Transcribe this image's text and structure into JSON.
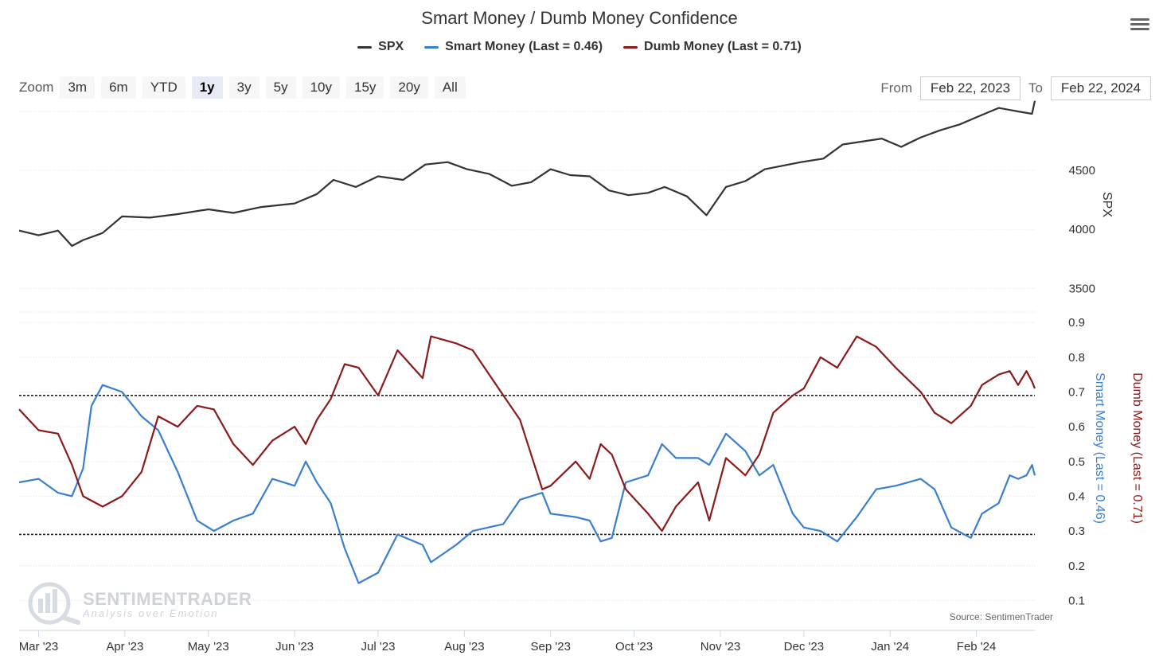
{
  "title": "Smart Money / Dumb Money Confidence",
  "legend": [
    {
      "label": "SPX",
      "color": "#333333"
    },
    {
      "label": "Smart Money (Last = 0.46)",
      "color": "#3a7fcf"
    },
    {
      "label": "Dumb Money (Last = 0.71)",
      "color": "#8b1a1a"
    }
  ],
  "zoom": {
    "label": "Zoom",
    "buttons": [
      "3m",
      "6m",
      "YTD",
      "1y",
      "3y",
      "5y",
      "10y",
      "15y",
      "20y",
      "All"
    ],
    "active": "1y"
  },
  "range": {
    "from_label": "From",
    "from_value": "Feb 22, 2023",
    "to_label": "To",
    "to_value": "Feb 22, 2024"
  },
  "source": "Source: SentimenTrader",
  "watermark": {
    "name": "SENTIMENTRADER",
    "tagline": "Analysis over Emotion"
  },
  "chart_data": {
    "type": "line",
    "x_range": [
      "2023-02-22",
      "2024-02-22"
    ],
    "x_tick_labels": [
      "Mar '23",
      "Apr '23",
      "May '23",
      "Jun '23",
      "Jul '23",
      "Aug '23",
      "Sep '23",
      "Oct '23",
      "Nov '23",
      "Dec '23",
      "Jan '24",
      "Feb '24"
    ],
    "panels": [
      {
        "axis_title": "SPX",
        "y_range": [
          3300,
          5000
        ],
        "y_ticks": [
          3500,
          4000,
          4500
        ],
        "series": [
          {
            "name": "SPX",
            "color": "#333333",
            "points": [
              [
                "2023-02-22",
                3990
              ],
              [
                "2023-03-01",
                3950
              ],
              [
                "2023-03-08",
                3990
              ],
              [
                "2023-03-13",
                3860
              ],
              [
                "2023-03-17",
                3910
              ],
              [
                "2023-03-24",
                3970
              ],
              [
                "2023-03-31",
                4110
              ],
              [
                "2023-04-10",
                4100
              ],
              [
                "2023-04-20",
                4130
              ],
              [
                "2023-05-01",
                4170
              ],
              [
                "2023-05-10",
                4140
              ],
              [
                "2023-05-20",
                4190
              ],
              [
                "2023-06-01",
                4220
              ],
              [
                "2023-06-09",
                4300
              ],
              [
                "2023-06-15",
                4420
              ],
              [
                "2023-06-23",
                4360
              ],
              [
                "2023-07-01",
                4450
              ],
              [
                "2023-07-10",
                4420
              ],
              [
                "2023-07-18",
                4550
              ],
              [
                "2023-07-26",
                4570
              ],
              [
                "2023-08-02",
                4510
              ],
              [
                "2023-08-10",
                4470
              ],
              [
                "2023-08-18",
                4370
              ],
              [
                "2023-08-25",
                4400
              ],
              [
                "2023-09-01",
                4510
              ],
              [
                "2023-09-08",
                4460
              ],
              [
                "2023-09-15",
                4450
              ],
              [
                "2023-09-22",
                4330
              ],
              [
                "2023-09-29",
                4290
              ],
              [
                "2023-10-06",
                4310
              ],
              [
                "2023-10-12",
                4360
              ],
              [
                "2023-10-20",
                4280
              ],
              [
                "2023-10-27",
                4120
              ],
              [
                "2023-11-03",
                4360
              ],
              [
                "2023-11-10",
                4410
              ],
              [
                "2023-11-17",
                4510
              ],
              [
                "2023-11-30",
                4570
              ],
              [
                "2023-12-08",
                4600
              ],
              [
                "2023-12-15",
                4720
              ],
              [
                "2023-12-29",
                4770
              ],
              [
                "2024-01-05",
                4700
              ],
              [
                "2024-01-12",
                4780
              ],
              [
                "2024-01-19",
                4840
              ],
              [
                "2024-01-26",
                4890
              ],
              [
                "2024-02-02",
                4960
              ],
              [
                "2024-02-09",
                5030
              ],
              [
                "2024-02-16",
                5000
              ],
              [
                "2024-02-21",
                4980
              ],
              [
                "2024-02-22",
                5090
              ]
            ]
          }
        ]
      },
      {
        "axis_title_left": "Smart Money (Last = 0.46)",
        "axis_title_right": "Dumb Money (Last = 0.71)",
        "y_range": [
          0.03,
          0.93
        ],
        "y_ticks": [
          0.1,
          0.2,
          0.3,
          0.4,
          0.5,
          0.6,
          0.7,
          0.8,
          0.9
        ],
        "reference_lines": [
          0.69,
          0.29
        ],
        "series": [
          {
            "name": "Smart Money",
            "color": "#3a7fcf",
            "points": [
              [
                "2023-02-22",
                0.44
              ],
              [
                "2023-03-01",
                0.45
              ],
              [
                "2023-03-08",
                0.41
              ],
              [
                "2023-03-13",
                0.4
              ],
              [
                "2023-03-17",
                0.48
              ],
              [
                "2023-03-20",
                0.66
              ],
              [
                "2023-03-24",
                0.72
              ],
              [
                "2023-03-31",
                0.7
              ],
              [
                "2023-04-07",
                0.63
              ],
              [
                "2023-04-13",
                0.59
              ],
              [
                "2023-04-20",
                0.47
              ],
              [
                "2023-04-27",
                0.33
              ],
              [
                "2023-05-03",
                0.3
              ],
              [
                "2023-05-10",
                0.33
              ],
              [
                "2023-05-17",
                0.35
              ],
              [
                "2023-05-24",
                0.45
              ],
              [
                "2023-06-01",
                0.43
              ],
              [
                "2023-06-05",
                0.5
              ],
              [
                "2023-06-09",
                0.44
              ],
              [
                "2023-06-14",
                0.38
              ],
              [
                "2023-06-19",
                0.25
              ],
              [
                "2023-06-24",
                0.15
              ],
              [
                "2023-07-01",
                0.18
              ],
              [
                "2023-07-08",
                0.29
              ],
              [
                "2023-07-17",
                0.26
              ],
              [
                "2023-07-20",
                0.21
              ],
              [
                "2023-07-29",
                0.26
              ],
              [
                "2023-08-04",
                0.3
              ],
              [
                "2023-08-15",
                0.32
              ],
              [
                "2023-08-21",
                0.39
              ],
              [
                "2023-08-29",
                0.41
              ],
              [
                "2023-09-01",
                0.35
              ],
              [
                "2023-09-10",
                0.34
              ],
              [
                "2023-09-15",
                0.33
              ],
              [
                "2023-09-19",
                0.27
              ],
              [
                "2023-09-23",
                0.28
              ],
              [
                "2023-09-28",
                0.44
              ],
              [
                "2023-10-06",
                0.46
              ],
              [
                "2023-10-11",
                0.55
              ],
              [
                "2023-10-16",
                0.51
              ],
              [
                "2023-10-24",
                0.51
              ],
              [
                "2023-10-28",
                0.49
              ],
              [
                "2023-11-03",
                0.58
              ],
              [
                "2023-11-10",
                0.53
              ],
              [
                "2023-11-15",
                0.46
              ],
              [
                "2023-11-20",
                0.49
              ],
              [
                "2023-11-27",
                0.35
              ],
              [
                "2023-12-01",
                0.31
              ],
              [
                "2023-12-07",
                0.3
              ],
              [
                "2023-12-13",
                0.27
              ],
              [
                "2023-12-20",
                0.34
              ],
              [
                "2023-12-27",
                0.42
              ],
              [
                "2024-01-03",
                0.43
              ],
              [
                "2024-01-12",
                0.45
              ],
              [
                "2024-01-17",
                0.42
              ],
              [
                "2024-01-23",
                0.31
              ],
              [
                "2024-01-30",
                0.28
              ],
              [
                "2024-02-03",
                0.35
              ],
              [
                "2024-02-09",
                0.38
              ],
              [
                "2024-02-13",
                0.46
              ],
              [
                "2024-02-16",
                0.45
              ],
              [
                "2024-02-19",
                0.46
              ],
              [
                "2024-02-21",
                0.49
              ],
              [
                "2024-02-22",
                0.46
              ]
            ]
          },
          {
            "name": "Dumb Money",
            "color": "#8b1a1a",
            "points": [
              [
                "2023-02-22",
                0.65
              ],
              [
                "2023-03-01",
                0.59
              ],
              [
                "2023-03-08",
                0.58
              ],
              [
                "2023-03-13",
                0.49
              ],
              [
                "2023-03-17",
                0.4
              ],
              [
                "2023-03-24",
                0.37
              ],
              [
                "2023-03-31",
                0.4
              ],
              [
                "2023-04-07",
                0.47
              ],
              [
                "2023-04-13",
                0.63
              ],
              [
                "2023-04-20",
                0.6
              ],
              [
                "2023-04-27",
                0.66
              ],
              [
                "2023-05-03",
                0.65
              ],
              [
                "2023-05-10",
                0.55
              ],
              [
                "2023-05-17",
                0.49
              ],
              [
                "2023-05-24",
                0.56
              ],
              [
                "2023-06-01",
                0.6
              ],
              [
                "2023-06-05",
                0.55
              ],
              [
                "2023-06-09",
                0.62
              ],
              [
                "2023-06-14",
                0.68
              ],
              [
                "2023-06-19",
                0.78
              ],
              [
                "2023-06-24",
                0.77
              ],
              [
                "2023-07-01",
                0.69
              ],
              [
                "2023-07-08",
                0.82
              ],
              [
                "2023-07-17",
                0.74
              ],
              [
                "2023-07-20",
                0.86
              ],
              [
                "2023-07-29",
                0.84
              ],
              [
                "2023-08-04",
                0.82
              ],
              [
                "2023-08-15",
                0.69
              ],
              [
                "2023-08-21",
                0.62
              ],
              [
                "2023-08-29",
                0.42
              ],
              [
                "2023-09-01",
                0.43
              ],
              [
                "2023-09-10",
                0.5
              ],
              [
                "2023-09-15",
                0.45
              ],
              [
                "2023-09-19",
                0.55
              ],
              [
                "2023-09-23",
                0.52
              ],
              [
                "2023-09-28",
                0.42
              ],
              [
                "2023-10-06",
                0.35
              ],
              [
                "2023-10-11",
                0.3
              ],
              [
                "2023-10-16",
                0.37
              ],
              [
                "2023-10-24",
                0.44
              ],
              [
                "2023-10-28",
                0.33
              ],
              [
                "2023-11-03",
                0.51
              ],
              [
                "2023-11-10",
                0.46
              ],
              [
                "2023-11-15",
                0.52
              ],
              [
                "2023-11-20",
                0.64
              ],
              [
                "2023-11-27",
                0.69
              ],
              [
                "2023-12-01",
                0.71
              ],
              [
                "2023-12-07",
                0.8
              ],
              [
                "2023-12-13",
                0.77
              ],
              [
                "2023-12-20",
                0.86
              ],
              [
                "2023-12-27",
                0.83
              ],
              [
                "2024-01-03",
                0.77
              ],
              [
                "2024-01-12",
                0.7
              ],
              [
                "2024-01-17",
                0.64
              ],
              [
                "2024-01-23",
                0.61
              ],
              [
                "2024-01-30",
                0.66
              ],
              [
                "2024-02-03",
                0.72
              ],
              [
                "2024-02-09",
                0.75
              ],
              [
                "2024-02-13",
                0.76
              ],
              [
                "2024-02-16",
                0.72
              ],
              [
                "2024-02-19",
                0.76
              ],
              [
                "2024-02-21",
                0.73
              ],
              [
                "2024-02-22",
                0.71
              ]
            ]
          }
        ]
      }
    ]
  }
}
